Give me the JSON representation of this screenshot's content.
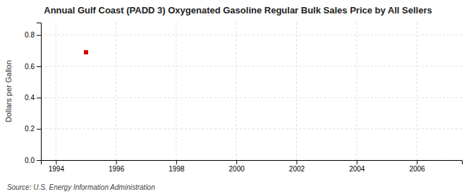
{
  "chart_data": {
    "type": "scatter",
    "title": "Annual Gulf Coast (PADD 3) Oxygenated Gasoline Regular Bulk Sales Price by All Sellers",
    "ylabel": "Dollars per Gallon",
    "source": "Source: U.S. Energy Information Administration",
    "x": [
      1995
    ],
    "values": [
      0.69
    ],
    "color": "#cc0000",
    "marker": "square",
    "xlim": [
      1993.5,
      2007.5
    ],
    "xticks": [
      1994,
      1996,
      1998,
      2000,
      2002,
      2004,
      2006
    ],
    "ylim": [
      0.0,
      0.88
    ],
    "yticks": [
      {
        "value": 0.0,
        "label": "0.0"
      },
      0.2,
      0.4,
      0.6,
      0.8
    ],
    "grid": true
  }
}
